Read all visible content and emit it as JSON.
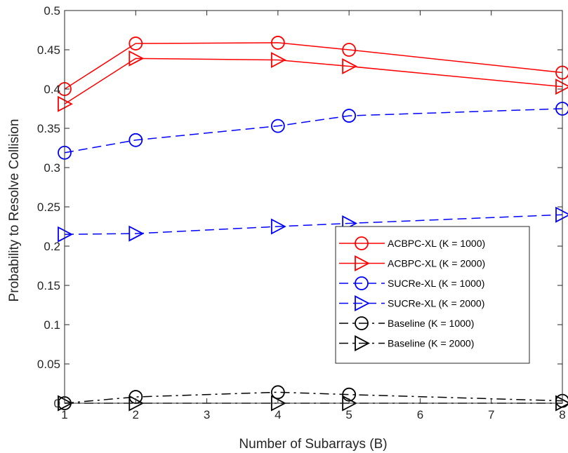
{
  "chart_data": {
    "type": "line",
    "xlabel": "Number of Subarrays (B)",
    "ylabel": "Probability to Resolve Collision",
    "xlim": [
      1,
      8
    ],
    "ylim": [
      0,
      0.5
    ],
    "xticks": [
      "1",
      "2",
      "3",
      "4",
      "5",
      "6",
      "7",
      "8"
    ],
    "yticks": [
      "0",
      "0.05",
      "0.1",
      "0.15",
      "0.2",
      "0.25",
      "0.3",
      "0.35",
      "0.4",
      "0.45",
      "0.5"
    ],
    "grid": false,
    "legend_position": "lower-right",
    "x": [
      1,
      2,
      4,
      5,
      8
    ],
    "series": [
      {
        "name": "ACBPC-XL (K = 1000)",
        "color": "#ff0000",
        "line": "solid",
        "marker": "circle",
        "values": [
          0.4,
          0.458,
          0.459,
          0.45,
          0.421
        ]
      },
      {
        "name": "ACBPC-XL (K = 2000)",
        "color": "#ff0000",
        "line": "solid",
        "marker": "triangle-right",
        "values": [
          0.381,
          0.439,
          0.437,
          0.429,
          0.403
        ]
      },
      {
        "name": "SUCRe-XL (K = 1000)",
        "color": "#0000ff",
        "line": "dashed",
        "marker": "circle",
        "values": [
          0.319,
          0.335,
          0.353,
          0.366,
          0.375
        ]
      },
      {
        "name": "SUCRe-XL (K = 2000)",
        "color": "#0000ff",
        "line": "dashed",
        "marker": "triangle-right",
        "values": [
          0.215,
          0.216,
          0.225,
          0.229,
          0.24
        ]
      },
      {
        "name": "Baseline (K = 1000)",
        "color": "#000000",
        "line": "dashdot",
        "marker": "circle",
        "values": [
          0.0,
          0.008,
          0.014,
          0.011,
          0.003
        ]
      },
      {
        "name": "Baseline (K = 2000)",
        "color": "#000000",
        "line": "dashdot",
        "marker": "triangle-right",
        "values": [
          0.0,
          0.0,
          0.0,
          0.0,
          0.0
        ]
      }
    ]
  }
}
